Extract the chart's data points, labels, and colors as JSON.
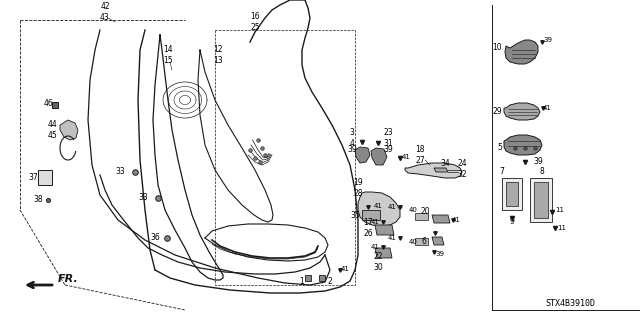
{
  "diagram_code": "STX4B3910D",
  "bg_color": "#ffffff",
  "line_color": "#1a1a1a",
  "text_color": "#000000",
  "fig_width": 6.4,
  "fig_height": 3.19,
  "dpi": 100
}
